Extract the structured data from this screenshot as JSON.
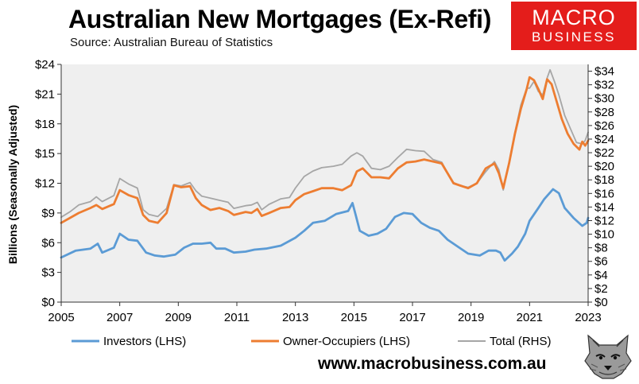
{
  "header": {
    "title": "Australian New Mortgages (Ex-Refi)",
    "subtitle": "Source: Australian Bureau of Statistics"
  },
  "logo": {
    "line1": "MACRO",
    "line2": "BUSINESS",
    "color": "#e41d1b"
  },
  "footer": {
    "website": "www.macrobusiness.com.au"
  },
  "chart_data": {
    "type": "line",
    "title": "Australian New Mortgages (Ex-Refi)",
    "subtitle": "Source: Australian Bureau of Statistics",
    "ylabel": "Billions (Seasonally Adjusted)",
    "xlim": [
      2005,
      2023
    ],
    "ylim_left": [
      0,
      24
    ],
    "ylim_right": [
      0,
      35
    ],
    "x_ticks": [
      2005,
      2007,
      2009,
      2011,
      2013,
      2015,
      2017,
      2019,
      2021,
      2023
    ],
    "y_ticks_left": [
      "$0",
      "$3",
      "$6",
      "$9",
      "$12",
      "$15",
      "$18",
      "$21",
      "$24"
    ],
    "y_ticks_right": [
      "$0",
      "$2",
      "$4",
      "$6",
      "$8",
      "$10",
      "$12",
      "$14",
      "$16",
      "$18",
      "$20",
      "$22",
      "$24",
      "$26",
      "$28",
      "$30",
      "$32",
      "$34"
    ],
    "grid": false,
    "plot_background": "#efefef",
    "legend_position": "bottom",
    "series": [
      {
        "name": "Investors (LHS)",
        "axis": "left",
        "color": "#5b9bd5",
        "points": [
          [
            2005.0,
            4.5
          ],
          [
            2005.5,
            5.2
          ],
          [
            2006.0,
            5.4
          ],
          [
            2006.25,
            5.9
          ],
          [
            2006.4,
            5.0
          ],
          [
            2006.8,
            5.5
          ],
          [
            2007.0,
            6.9
          ],
          [
            2007.3,
            6.3
          ],
          [
            2007.6,
            6.2
          ],
          [
            2007.9,
            5.0
          ],
          [
            2008.2,
            4.7
          ],
          [
            2008.5,
            4.6
          ],
          [
            2008.9,
            4.8
          ],
          [
            2009.2,
            5.5
          ],
          [
            2009.5,
            5.9
          ],
          [
            2009.8,
            5.9
          ],
          [
            2010.1,
            6.0
          ],
          [
            2010.3,
            5.4
          ],
          [
            2010.6,
            5.4
          ],
          [
            2010.9,
            5.0
          ],
          [
            2011.3,
            5.1
          ],
          [
            2011.6,
            5.3
          ],
          [
            2012.0,
            5.4
          ],
          [
            2012.5,
            5.7
          ],
          [
            2013.0,
            6.5
          ],
          [
            2013.3,
            7.2
          ],
          [
            2013.6,
            8.0
          ],
          [
            2014.0,
            8.2
          ],
          [
            2014.4,
            8.9
          ],
          [
            2014.8,
            9.2
          ],
          [
            2014.95,
            10.0
          ],
          [
            2015.05,
            8.9
          ],
          [
            2015.2,
            7.2
          ],
          [
            2015.5,
            6.7
          ],
          [
            2015.8,
            6.9
          ],
          [
            2016.1,
            7.4
          ],
          [
            2016.4,
            8.6
          ],
          [
            2016.7,
            9.0
          ],
          [
            2017.0,
            8.9
          ],
          [
            2017.3,
            8.0
          ],
          [
            2017.6,
            7.5
          ],
          [
            2017.9,
            7.2
          ],
          [
            2018.2,
            6.3
          ],
          [
            2018.6,
            5.5
          ],
          [
            2018.9,
            4.9
          ],
          [
            2019.3,
            4.7
          ],
          [
            2019.6,
            5.2
          ],
          [
            2019.85,
            5.2
          ],
          [
            2020.0,
            5.0
          ],
          [
            2020.15,
            4.2
          ],
          [
            2020.4,
            4.9
          ],
          [
            2020.6,
            5.6
          ],
          [
            2020.85,
            6.9
          ],
          [
            2021.0,
            8.2
          ],
          [
            2021.3,
            9.5
          ],
          [
            2021.5,
            10.4
          ],
          [
            2021.8,
            11.4
          ],
          [
            2022.0,
            11.0
          ],
          [
            2022.2,
            9.5
          ],
          [
            2022.5,
            8.5
          ],
          [
            2022.8,
            7.7
          ],
          [
            2022.95,
            8.0
          ],
          [
            2023.0,
            8.5
          ]
        ]
      },
      {
        "name": "Owner-Occupiers (LHS)",
        "axis": "left",
        "color": "#ed7d31",
        "points": [
          [
            2005.0,
            8.0
          ],
          [
            2005.3,
            8.5
          ],
          [
            2005.6,
            9.0
          ],
          [
            2006.0,
            9.5
          ],
          [
            2006.2,
            9.8
          ],
          [
            2006.4,
            9.4
          ],
          [
            2006.8,
            9.9
          ],
          [
            2007.0,
            11.3
          ],
          [
            2007.3,
            10.8
          ],
          [
            2007.6,
            10.5
          ],
          [
            2007.8,
            8.8
          ],
          [
            2008.0,
            8.2
          ],
          [
            2008.3,
            8.0
          ],
          [
            2008.6,
            9.0
          ],
          [
            2008.85,
            11.8
          ],
          [
            2009.1,
            11.6
          ],
          [
            2009.4,
            11.7
          ],
          [
            2009.6,
            10.5
          ],
          [
            2009.8,
            9.8
          ],
          [
            2010.1,
            9.3
          ],
          [
            2010.4,
            9.5
          ],
          [
            2010.7,
            9.2
          ],
          [
            2010.9,
            8.8
          ],
          [
            2011.3,
            9.1
          ],
          [
            2011.5,
            9.0
          ],
          [
            2011.7,
            9.4
          ],
          [
            2011.85,
            8.7
          ],
          [
            2012.1,
            9.0
          ],
          [
            2012.5,
            9.5
          ],
          [
            2012.8,
            9.6
          ],
          [
            2013.0,
            10.3
          ],
          [
            2013.3,
            10.9
          ],
          [
            2013.6,
            11.2
          ],
          [
            2013.9,
            11.5
          ],
          [
            2014.3,
            11.5
          ],
          [
            2014.6,
            11.3
          ],
          [
            2014.9,
            11.8
          ],
          [
            2015.1,
            13.2
          ],
          [
            2015.3,
            13.5
          ],
          [
            2015.6,
            12.6
          ],
          [
            2015.9,
            12.6
          ],
          [
            2016.2,
            12.5
          ],
          [
            2016.5,
            13.5
          ],
          [
            2016.8,
            14.1
          ],
          [
            2017.1,
            14.2
          ],
          [
            2017.4,
            14.4
          ],
          [
            2017.7,
            14.2
          ],
          [
            2018.0,
            14.0
          ],
          [
            2018.2,
            13.0
          ],
          [
            2018.4,
            12.0
          ],
          [
            2018.6,
            11.8
          ],
          [
            2018.9,
            11.5
          ],
          [
            2019.2,
            12.0
          ],
          [
            2019.5,
            13.5
          ],
          [
            2019.8,
            14.0
          ],
          [
            2019.95,
            13.0
          ],
          [
            2020.1,
            11.5
          ],
          [
            2020.3,
            14.0
          ],
          [
            2020.5,
            17.0
          ],
          [
            2020.7,
            19.5
          ],
          [
            2020.9,
            21.5
          ],
          [
            2021.0,
            22.7
          ],
          [
            2021.15,
            22.4
          ],
          [
            2021.3,
            21.5
          ],
          [
            2021.45,
            20.5
          ],
          [
            2021.6,
            22.5
          ],
          [
            2021.75,
            22.0
          ],
          [
            2021.9,
            20.5
          ],
          [
            2022.1,
            18.5
          ],
          [
            2022.3,
            17.0
          ],
          [
            2022.5,
            16.0
          ],
          [
            2022.7,
            15.4
          ],
          [
            2022.8,
            16.2
          ],
          [
            2022.9,
            15.8
          ],
          [
            2023.0,
            16.3
          ]
        ]
      },
      {
        "name": "Total (RHS)",
        "axis": "right",
        "color": "#a6a6a6",
        "points": [
          [
            2005.0,
            12.5
          ],
          [
            2005.3,
            13.3
          ],
          [
            2005.6,
            14.3
          ],
          [
            2006.0,
            14.8
          ],
          [
            2006.2,
            15.5
          ],
          [
            2006.4,
            14.8
          ],
          [
            2006.8,
            15.7
          ],
          [
            2007.0,
            18.2
          ],
          [
            2007.3,
            17.4
          ],
          [
            2007.6,
            16.8
          ],
          [
            2007.8,
            13.6
          ],
          [
            2008.0,
            12.9
          ],
          [
            2008.3,
            12.6
          ],
          [
            2008.6,
            13.8
          ],
          [
            2008.85,
            17.3
          ],
          [
            2009.1,
            17.1
          ],
          [
            2009.4,
            17.6
          ],
          [
            2009.6,
            16.4
          ],
          [
            2009.8,
            15.6
          ],
          [
            2010.1,
            15.3
          ],
          [
            2010.4,
            15.0
          ],
          [
            2010.7,
            14.7
          ],
          [
            2010.9,
            13.8
          ],
          [
            2011.3,
            14.2
          ],
          [
            2011.5,
            14.3
          ],
          [
            2011.7,
            14.7
          ],
          [
            2011.85,
            13.6
          ],
          [
            2012.1,
            14.4
          ],
          [
            2012.5,
            15.2
          ],
          [
            2012.8,
            15.4
          ],
          [
            2013.0,
            16.8
          ],
          [
            2013.3,
            18.5
          ],
          [
            2013.6,
            19.3
          ],
          [
            2013.9,
            19.8
          ],
          [
            2014.3,
            20.0
          ],
          [
            2014.6,
            20.3
          ],
          [
            2014.9,
            21.5
          ],
          [
            2015.1,
            22.0
          ],
          [
            2015.3,
            21.5
          ],
          [
            2015.6,
            19.7
          ],
          [
            2015.9,
            19.5
          ],
          [
            2016.2,
            20.0
          ],
          [
            2016.5,
            21.3
          ],
          [
            2016.8,
            22.5
          ],
          [
            2017.1,
            22.3
          ],
          [
            2017.4,
            22.2
          ],
          [
            2017.7,
            21.0
          ],
          [
            2018.0,
            20.6
          ],
          [
            2018.2,
            19.0
          ],
          [
            2018.4,
            17.6
          ],
          [
            2018.6,
            17.2
          ],
          [
            2018.9,
            16.9
          ],
          [
            2019.2,
            17.5
          ],
          [
            2019.5,
            19.2
          ],
          [
            2019.8,
            20.7
          ],
          [
            2019.95,
            19.5
          ],
          [
            2020.1,
            16.5
          ],
          [
            2020.3,
            20.5
          ],
          [
            2020.5,
            25.0
          ],
          [
            2020.7,
            29.0
          ],
          [
            2020.9,
            31.5
          ],
          [
            2021.0,
            31.5
          ],
          [
            2021.15,
            32.5
          ],
          [
            2021.3,
            31.0
          ],
          [
            2021.45,
            30.5
          ],
          [
            2021.6,
            33.0
          ],
          [
            2021.7,
            34.2
          ],
          [
            2021.85,
            32.5
          ],
          [
            2022.0,
            30.5
          ],
          [
            2022.2,
            27.5
          ],
          [
            2022.4,
            25.5
          ],
          [
            2022.6,
            23.5
          ],
          [
            2022.8,
            23.3
          ],
          [
            2022.9,
            23.8
          ],
          [
            2023.0,
            25.0
          ]
        ]
      }
    ]
  }
}
